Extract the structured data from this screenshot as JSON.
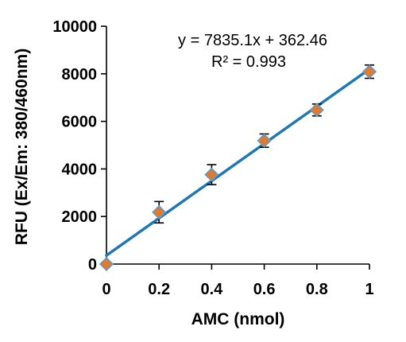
{
  "chart_data": {
    "type": "scatter",
    "title": "",
    "xlabel": "AMC (nmol)",
    "ylabel": "RFU (Ex/Em: 380/460nm)",
    "xlim": [
      0,
      1
    ],
    "ylim": [
      0,
      10000
    ],
    "x_ticks": [
      "0",
      "0.2",
      "0.4",
      "0.6",
      "0.8",
      "1"
    ],
    "y_ticks": [
      "0",
      "2000",
      "4000",
      "6000",
      "8000",
      "10000"
    ],
    "grid": false,
    "legend": "none",
    "series": [
      {
        "x": [
          0,
          0.2,
          0.4,
          0.6,
          0.8,
          1.0
        ],
        "y": [
          0,
          2180,
          3760,
          5190,
          6480,
          8090
        ],
        "error": [
          0,
          450,
          420,
          280,
          250,
          280
        ],
        "marker": "diamond",
        "marker_color": "#E07B2C"
      }
    ],
    "trendline": {
      "slope": 7835.1,
      "intercept": 362.46,
      "color": "#1F77B4"
    },
    "annotations": {
      "equation": "y = 7835.1x + 362.46",
      "r_squared": "R² = 0.993"
    }
  }
}
